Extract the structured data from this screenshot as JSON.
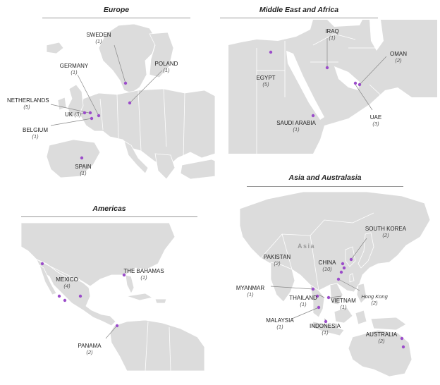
{
  "panels": {
    "europe": {
      "title": "Europe",
      "countries": {
        "sweden": {
          "name": "SWEDEN",
          "count": "(1)"
        },
        "poland": {
          "name": "POLAND",
          "count": "(1)"
        },
        "germany": {
          "name": "GERMANY",
          "count": "(1)"
        },
        "netherlands": {
          "name": "NETHERLANDS",
          "count": "(5)"
        },
        "uk": {
          "name": "UK",
          "count": "(3)"
        },
        "belgium": {
          "name": "BELGIUM",
          "count": "(1)"
        },
        "spain": {
          "name": "SPAIN",
          "count": "(1)"
        }
      }
    },
    "mea": {
      "title": "Middle East and Africa",
      "countries": {
        "iraq": {
          "name": "IRAQ",
          "count": "(1)"
        },
        "oman": {
          "name": "OMAN",
          "count": "(2)"
        },
        "egypt": {
          "name": "EGYPT",
          "count": "(5)"
        },
        "saudi": {
          "name": "SAUDI ARABIA",
          "count": "(1)"
        },
        "uae": {
          "name": "UAE",
          "count": "(3)"
        }
      }
    },
    "americas": {
      "title": "Americas",
      "countries": {
        "mexico": {
          "name": "MEXICO",
          "count": "(4)"
        },
        "bahamas": {
          "name": "THE BAHAMAS",
          "count": "(1)"
        },
        "panama": {
          "name": "PANAMA",
          "count": "(2)"
        }
      }
    },
    "asia": {
      "title": "Asia and Australasia",
      "continent_label": "Asia",
      "countries": {
        "south_korea": {
          "name": "SOUTH KOREA",
          "count": "(2)"
        },
        "pakistan": {
          "name": "PAKISTAN",
          "count": "(2)"
        },
        "china": {
          "name": "CHINA",
          "count": "(10)"
        },
        "myanmar": {
          "name": "MYANMAR",
          "count": "(1)"
        },
        "thailand": {
          "name": "THAILAND",
          "count": "(1)"
        },
        "vietnam": {
          "name": "VIETNAM",
          "count": "(1)"
        },
        "hong_kong": {
          "name": "Hong Kong",
          "count": "(2)"
        },
        "malaysia": {
          "name": "MALAYSIA",
          "count": "(1)"
        },
        "indonesia": {
          "name": "INDONESIA",
          "count": "(1)"
        },
        "australia": {
          "name": "AUSTRALIA",
          "count": "(2)"
        }
      }
    }
  },
  "colors": {
    "land": "#dcdcdc",
    "marker": "#9b4dca"
  }
}
